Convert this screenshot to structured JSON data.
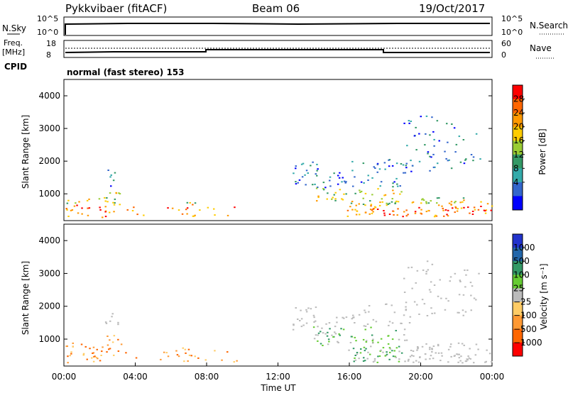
{
  "header": {
    "radar": "Pykkvibaer (fitACF)",
    "beam": "Beam 06",
    "date": "19/Oct/2017"
  },
  "status_panels": {
    "nsky_label": "N.Sky",
    "nsearch_label": "N.Search",
    "noise_ticks_left": [
      "10^5",
      "10^0"
    ],
    "noise_ticks_right": [
      "10^5",
      "10^0"
    ],
    "freq_label": "Freq.",
    "freq_unit": "[MHz]",
    "freq_ticks": [
      "18",
      "8"
    ],
    "nave_label": "Nave",
    "nave_ticks": [
      "60",
      "0"
    ],
    "cpid_label": "CPID",
    "cpid_value": "normal (fast stereo) 153"
  },
  "chart_data": [
    {
      "type": "heatmap",
      "parameter": "Power",
      "ylabel": "Slant Range [km]",
      "yticks": [
        1000,
        2000,
        3000,
        4000
      ],
      "ylim": [
        180,
        4500
      ],
      "xlim_hours": [
        0,
        24
      ],
      "colorbar": {
        "label": "Power [dB]",
        "ticks": [
          "28",
          "24",
          "20",
          "16",
          "12",
          "8",
          "4"
        ],
        "colors": [
          "#ff0000",
          "#ff6600",
          "#ff9900",
          "#ffcc00",
          "#99cc33",
          "#339966",
          "#33aaaa",
          "#3366cc",
          "#0000ff"
        ]
      }
    },
    {
      "type": "heatmap",
      "parameter": "Velocity",
      "ylabel": "Slant Range [km]",
      "yticks": [
        1000,
        2000,
        3000,
        4000
      ],
      "ylim": [
        180,
        4500
      ],
      "xlim_hours": [
        0,
        24
      ],
      "xlabel": "Time UT",
      "xticks": [
        "00:00",
        "04:00",
        "08:00",
        "12:00",
        "16:00",
        "20:00",
        "00:00"
      ],
      "colorbar": {
        "label": "Velocity [m s⁻¹]",
        "ticks": [
          "1000",
          "500",
          "100",
          "25",
          "−25",
          "−100",
          "−500",
          "−1000"
        ],
        "colors": [
          "#2233cc",
          "#2266aa",
          "#339966",
          "#66cc33",
          "#bbbbbb",
          "#ffcc66",
          "#ff9933",
          "#ff6600",
          "#ff0000"
        ]
      }
    }
  ]
}
